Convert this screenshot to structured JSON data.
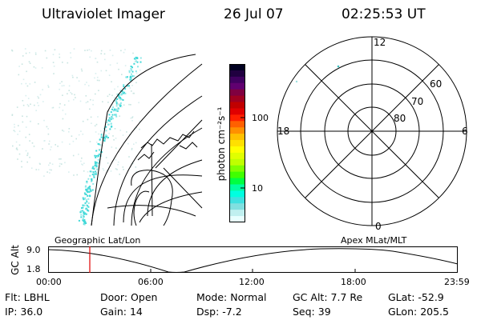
{
  "header": {
    "title": "Ultraviolet Imager",
    "date": "26 Jul 07",
    "time": "02:25:53 UT"
  },
  "colorbar": {
    "unit_label": "photon cm⁻²s⁻¹",
    "ticks": [
      "100",
      "10"
    ],
    "colors": [
      "#000020",
      "#200040",
      "#400060",
      "#600070",
      "#800040",
      "#a00020",
      "#c00000",
      "#e00000",
      "#ff2000",
      "#ff6000",
      "#ff9000",
      "#ffc000",
      "#ffe000",
      "#ffff00",
      "#e0ff00",
      "#c0ff00",
      "#80ff00",
      "#40ff00",
      "#00ff40",
      "#00ffa0",
      "#00ffe0",
      "#40e0e0",
      "#80e0e0",
      "#c0f0f0",
      "#e8ffff"
    ]
  },
  "polar_plot": {
    "mlt_labels": {
      "top": "12",
      "bottom": "0",
      "left": "18",
      "right": "6"
    },
    "lat_labels": [
      "60",
      "70",
      "80"
    ]
  },
  "timeline": {
    "axis_label": "GC Alt",
    "y_labels": [
      "9.0",
      "1.8"
    ],
    "left_title": "Geographic Lat/Lon",
    "right_title": "Apex MLat/MLT",
    "x_ticks": [
      "00:00",
      "06:00",
      "12:00",
      "18:00",
      "23:59"
    ],
    "marker_color": "#e00000"
  },
  "status": {
    "row1": [
      {
        "label": "Flt:",
        "value": "LBHL"
      },
      {
        "label": "Door:",
        "value": "Open"
      },
      {
        "label": "Mode:",
        "value": "Normal"
      },
      {
        "label": "GC Alt:",
        "value": "7.7 Re"
      },
      {
        "label": "GLat:",
        "value": "-52.9"
      }
    ],
    "row2": [
      {
        "label": "IP:",
        "value": "36.0"
      },
      {
        "label": "Gain:",
        "value": "14"
      },
      {
        "label": "Dsp:",
        "value": "-7.2"
      },
      {
        "label": "Seq:",
        "value": "39"
      },
      {
        "label": "GLon:",
        "value": "205.5"
      }
    ]
  }
}
